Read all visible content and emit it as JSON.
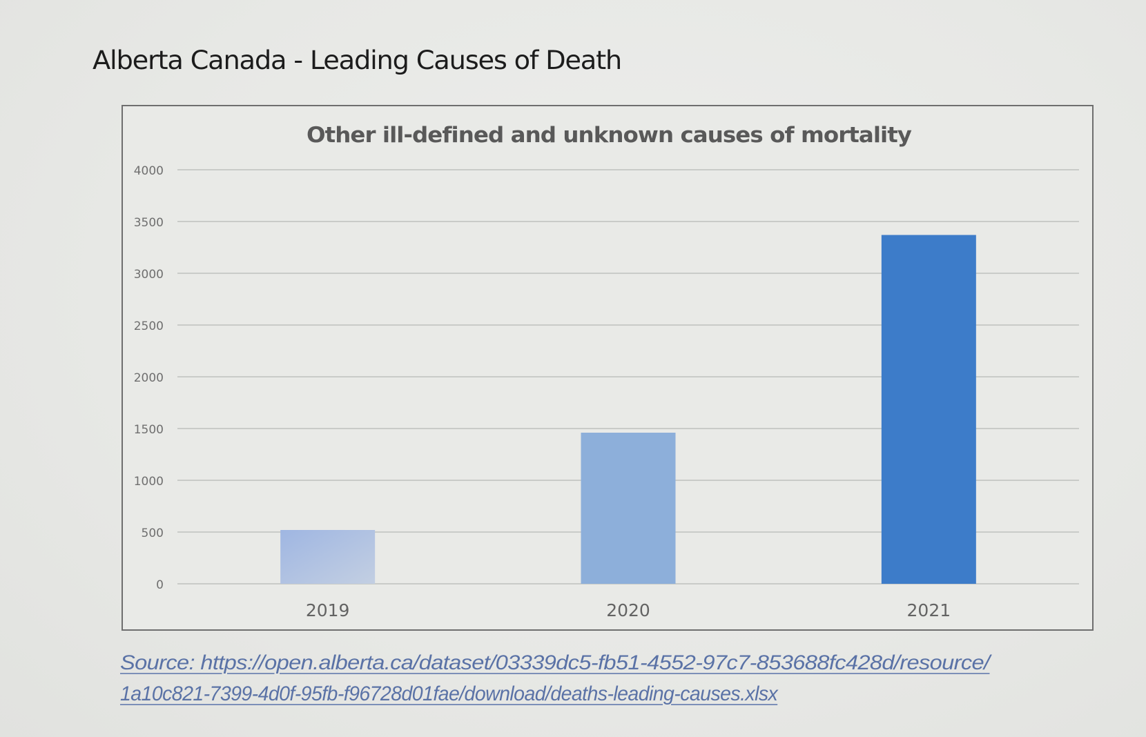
{
  "slide": {
    "title": "Alberta Canada - Leading Causes of Death",
    "source_line1": "Source: https://open.alberta.ca/dataset/03339dc5-fb51-4552-97c7-853688fc428d/resource/",
    "source_line2": "1a10c821-7399-4d0f-95fb-f96728d01fae/download/deaths-leading-causes.xlsx"
  },
  "chart_data": {
    "type": "bar",
    "title": "Other ill-defined and unknown causes of mortality",
    "xlabel": "",
    "ylabel": "",
    "categories": [
      "2019",
      "2020",
      "2021"
    ],
    "values": [
      520,
      1460,
      3370
    ],
    "ylim": [
      0,
      4000
    ],
    "yticks": [
      0,
      500,
      1000,
      1500,
      2000,
      2500,
      3000,
      3500,
      4000
    ],
    "ytick_labels": [
      "0",
      "500",
      "1000",
      "1500",
      "2000",
      "2500",
      "3000",
      "3500",
      "4000"
    ],
    "grid": true,
    "legend": "none",
    "bar_colors": [
      "#a9bde0",
      "#8dafda",
      "#3d7cc9"
    ]
  }
}
